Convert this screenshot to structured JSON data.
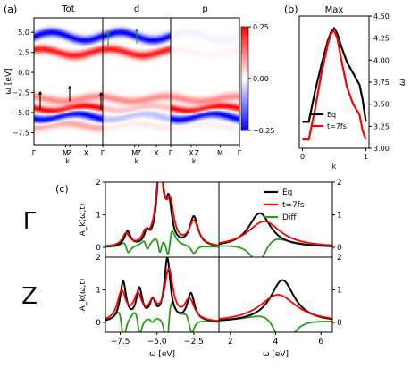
{
  "chart_data": [
    {
      "id": "a",
      "type": "heatmap",
      "label": "(a)",
      "panels": [
        {
          "title": "Tot",
          "xticks": [
            "Γ",
            "M",
            "Z",
            "X",
            "Γ"
          ]
        },
        {
          "title": "d",
          "xticks": [
            "M",
            "Z",
            "X",
            "Γ"
          ]
        },
        {
          "title": "p",
          "xticks": [
            "X",
            "Z",
            "M",
            "Γ"
          ]
        }
      ],
      "xlabels": [
        "k",
        "k",
        "k"
      ],
      "ylabel": "ω [eV]",
      "yticks": [
        "5.0",
        "2.5",
        "0.0",
        "−2.5",
        "−5.0",
        "−7.5"
      ],
      "ylim": [
        -9,
        6.8
      ],
      "bands": [
        {
          "center": 4.5,
          "amp": -1.0,
          "width": 0.35,
          "wave": 0.5
        },
        {
          "center": 2.5,
          "amp": 0.9,
          "width": 0.35,
          "wave": 0.4
        },
        {
          "center": -3.3,
          "amp": 0.45,
          "width": 0.35,
          "wave": 0.3
        },
        {
          "center": -4.5,
          "amp": 1.0,
          "width": 0.3,
          "wave": 0.3
        },
        {
          "center": -5.5,
          "amp": -1.0,
          "width": 0.35,
          "wave": 0.4
        },
        {
          "center": -6.6,
          "amp": 0.35,
          "width": 0.35,
          "wave": 0.3
        }
      ],
      "colorbar": {
        "ticks": [
          "0.25",
          "0.00",
          "−0.25"
        ],
        "range": [
          -0.25,
          0.25
        ]
      }
    },
    {
      "id": "b",
      "type": "line",
      "label": "(b)",
      "title": "Max",
      "xlabel": "k",
      "ylabel": "ω",
      "xlim": [
        -0.05,
        1.05
      ],
      "ylim": [
        3.0,
        4.5
      ],
      "xticks": [
        "0",
        "1"
      ],
      "yticks": [
        "3.00",
        "3.25",
        "3.50",
        "3.75",
        "4.00",
        "4.25",
        "4.50"
      ],
      "legend": "center-right",
      "series": [
        {
          "name": "Eq",
          "color": "#000000",
          "x": [
            0,
            0.1,
            0.2,
            0.3,
            0.4,
            0.45,
            0.5,
            0.55,
            0.6,
            0.7,
            0.8,
            0.9,
            0.95,
            1.0
          ],
          "y": [
            3.3,
            3.3,
            3.65,
            3.95,
            4.22,
            4.32,
            4.36,
            4.3,
            4.18,
            3.98,
            3.85,
            3.72,
            3.55,
            3.3
          ]
        },
        {
          "name": "t=7fs",
          "color": "#ff0000",
          "x": [
            0,
            0.1,
            0.2,
            0.3,
            0.4,
            0.45,
            0.5,
            0.55,
            0.6,
            0.7,
            0.8,
            0.9,
            0.95,
            1.0
          ],
          "y": [
            3.1,
            3.1,
            3.45,
            3.85,
            4.18,
            4.3,
            4.34,
            4.25,
            4.05,
            3.7,
            3.5,
            3.38,
            3.2,
            3.1
          ]
        }
      ]
    },
    {
      "id": "c",
      "type": "line",
      "label": "(c)",
      "ylabel": "A_k(ω,t)",
      "xlabel": "ω [eV]",
      "rows": [
        "Γ",
        "Z"
      ],
      "left_xlim": [
        -8.5,
        -0.8
      ],
      "right_xlim": [
        1.5,
        6.5
      ],
      "left_xticks": [
        "−7.5",
        "−5.0",
        "−2.5"
      ],
      "right_xticks": [
        "2",
        "4",
        "6"
      ],
      "ylim": [
        -0.3,
        2.0
      ],
      "yticks": [
        "0",
        "1",
        "2"
      ],
      "legend": [
        "Eq",
        "t=7fs",
        "Diff"
      ],
      "colors": {
        "Eq": "#000000",
        "t=7fs": "#ff0000",
        "Diff": "#2a9a1a"
      }
    }
  ]
}
